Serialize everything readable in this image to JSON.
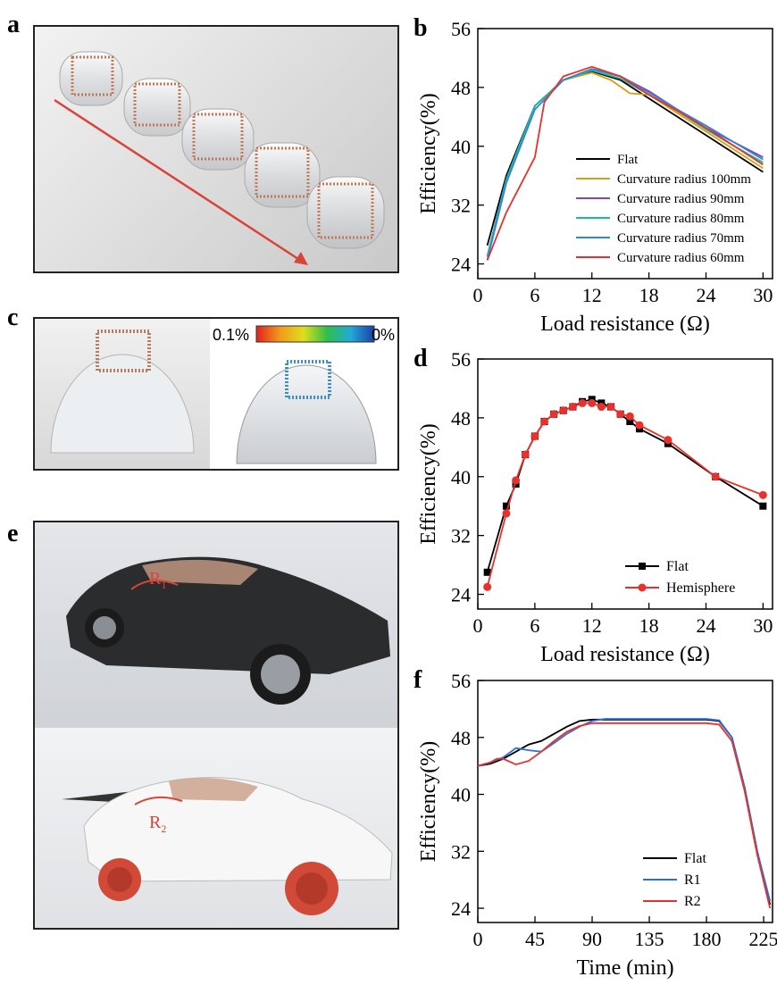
{
  "panel_labels": {
    "a": "a",
    "b": "b",
    "c": "c",
    "d": "d",
    "e": "e",
    "f": "f"
  },
  "panel_c": {
    "scale_max": "0.1%",
    "scale_min": "0%"
  },
  "panel_e": {
    "r1": "R",
    "r1_sub": "1",
    "r2": "R",
    "r2_sub": "2"
  },
  "colors": {
    "flat": "#000000",
    "r100": "#d4a017",
    "r90": "#8e44ad",
    "r80": "#1abc9c",
    "r70": "#2e86de",
    "r60": "#e8312c",
    "hemi": "#e8312c",
    "r1": "#2e6fd8",
    "r2": "#e8312c",
    "arrow": "#d9443a"
  },
  "chart_data": [
    {
      "id": "b",
      "type": "line",
      "xlabel": "Load resistance (Ω)",
      "ylabel": "Efficiency(%)",
      "xlim": [
        0,
        31
      ],
      "ylim": [
        22,
        56
      ],
      "xticks": [
        0,
        6,
        12,
        18,
        24,
        30
      ],
      "yticks": [
        24,
        32,
        40,
        48,
        56
      ],
      "legend_position": "bottom-right",
      "series": [
        {
          "name": "Flat",
          "color_key": "flat",
          "x": [
            1,
            3,
            6,
            9,
            12,
            15,
            18,
            21,
            24,
            27,
            30
          ],
          "y": [
            26.5,
            36,
            45.5,
            49,
            50.2,
            49,
            46.5,
            44,
            41.5,
            39,
            36.5
          ]
        },
        {
          "name": "Curvature radius 100mm",
          "color_key": "r100",
          "x": [
            1,
            3,
            6,
            9,
            12,
            14,
            16,
            18,
            21,
            24,
            27,
            30
          ],
          "y": [
            25,
            35.5,
            45.5,
            49,
            50,
            49,
            47.2,
            47,
            44.5,
            42,
            39.5,
            37
          ]
        },
        {
          "name": "Curvature radius 90mm",
          "color_key": "r90",
          "x": [
            1,
            3,
            6,
            9,
            12,
            15,
            18,
            21,
            24,
            27,
            30
          ],
          "y": [
            25,
            35.5,
            45.5,
            49,
            50.5,
            49.5,
            47.5,
            45,
            42.5,
            40.5,
            38.5
          ]
        },
        {
          "name": "Curvature radius 80mm",
          "color_key": "r80",
          "x": [
            1,
            3,
            6,
            9,
            12,
            15,
            18,
            21,
            24,
            27,
            30
          ],
          "y": [
            25,
            35.5,
            45.5,
            49,
            50.3,
            49.2,
            47,
            44.8,
            42.3,
            40,
            37.8
          ]
        },
        {
          "name": "Curvature radius 70mm",
          "color_key": "r70",
          "x": [
            1,
            3,
            6,
            9,
            12,
            15,
            18,
            21,
            24,
            27,
            30
          ],
          "y": [
            24.5,
            35,
            45,
            49,
            50.5,
            49.5,
            47.3,
            45,
            42.8,
            40.5,
            38.2
          ]
        },
        {
          "name": "Curvature radius 60mm",
          "color_key": "r60",
          "x": [
            1,
            3,
            6,
            7,
            9,
            12,
            15,
            18,
            21,
            24,
            27,
            30
          ],
          "y": [
            24.5,
            31,
            38.5,
            46,
            49.5,
            50.8,
            49.5,
            47,
            44.8,
            42.5,
            40,
            37.5
          ]
        }
      ]
    },
    {
      "id": "d",
      "type": "line",
      "xlabel": "Load resistance (Ω)",
      "ylabel": "Efficiency(%)",
      "xlim": [
        0,
        31
      ],
      "ylim": [
        22,
        56
      ],
      "xticks": [
        0,
        6,
        12,
        18,
        24,
        30
      ],
      "yticks": [
        24,
        32,
        40,
        48,
        56
      ],
      "legend_position": "bottom-right",
      "series": [
        {
          "name": "Flat",
          "color_key": "flat",
          "marker": "square",
          "x": [
            1,
            3,
            4,
            5,
            6,
            7,
            8,
            9,
            10,
            11,
            12,
            13,
            14,
            15,
            16,
            17,
            20,
            25,
            30
          ],
          "y": [
            27,
            36,
            39,
            43,
            45.5,
            47.5,
            48.5,
            49,
            49.5,
            50.2,
            50.5,
            50,
            49.5,
            48.5,
            47.5,
            46.5,
            44.5,
            40,
            36
          ]
        },
        {
          "name": "Hemisphere",
          "color_key": "hemi",
          "marker": "circle",
          "x": [
            1,
            3,
            4,
            5,
            6,
            7,
            8,
            9,
            10,
            11,
            12,
            13,
            14,
            15,
            16,
            17,
            20,
            25,
            30
          ],
          "y": [
            25,
            35,
            39.5,
            43,
            45.5,
            47.5,
            48.5,
            49,
            49.5,
            50,
            50,
            49.5,
            49.5,
            48.5,
            48.2,
            47,
            45,
            40,
            37.5
          ]
        }
      ]
    },
    {
      "id": "f",
      "type": "line",
      "xlabel": "Time (min)",
      "ylabel": "Efficiency(%)",
      "xlim": [
        0,
        232
      ],
      "ylim": [
        22,
        56
      ],
      "xticks": [
        0,
        45,
        90,
        135,
        180,
        225
      ],
      "yticks": [
        24,
        32,
        40,
        48,
        56
      ],
      "legend_position": "bottom-right",
      "series": [
        {
          "name": "Flat",
          "color_key": "flat",
          "x": [
            0,
            10,
            20,
            30,
            40,
            50,
            60,
            70,
            80,
            90,
            100,
            120,
            150,
            180,
            190,
            200,
            210,
            220,
            230
          ],
          "y": [
            44,
            44.3,
            45,
            46,
            47,
            47.5,
            48.5,
            49.5,
            50.3,
            50.5,
            50.5,
            50.5,
            50.5,
            50.5,
            50.3,
            48,
            41,
            32,
            24.5
          ]
        },
        {
          "name": "R1",
          "color_key": "r1",
          "x": [
            0,
            10,
            20,
            30,
            40,
            50,
            60,
            70,
            80,
            90,
            100,
            120,
            150,
            180,
            190,
            200,
            210,
            220,
            230
          ],
          "y": [
            44,
            44.5,
            45.2,
            46.5,
            46.2,
            46,
            47.2,
            48.5,
            49.5,
            50.3,
            50.6,
            50.6,
            50.6,
            50.6,
            50.4,
            48,
            41,
            32,
            25
          ]
        },
        {
          "name": "R2",
          "color_key": "r2",
          "x": [
            0,
            10,
            15,
            20,
            30,
            40,
            50,
            60,
            70,
            80,
            90,
            100,
            120,
            150,
            180,
            190,
            200,
            210,
            220,
            230
          ],
          "y": [
            44,
            44.5,
            45,
            45,
            44.2,
            44.7,
            46,
            47.5,
            48.8,
            49.6,
            50,
            50,
            50,
            50,
            50,
            49.8,
            47.5,
            40.5,
            31.5,
            24
          ]
        }
      ]
    }
  ]
}
